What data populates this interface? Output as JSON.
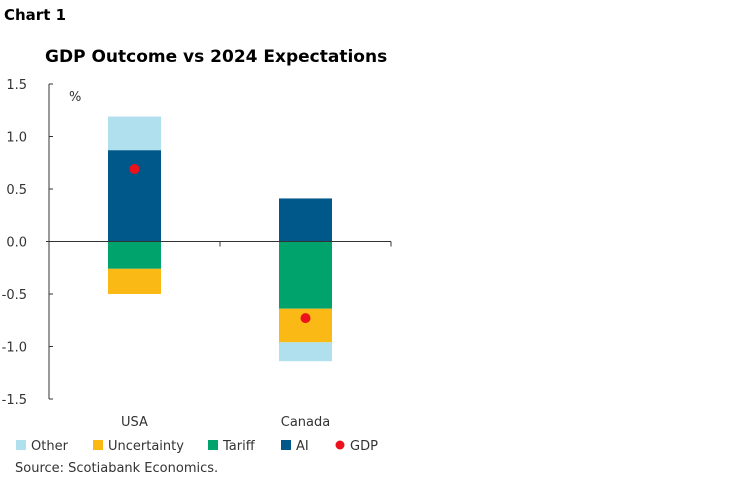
{
  "chart_label": "Chart 1",
  "source": "Source: Scotiabank Economics.",
  "chart_data": {
    "type": "bar",
    "stacked": true,
    "title": "GDP Outcome vs 2024 Expectations",
    "ylabel": "%",
    "categories": [
      "USA",
      "Canada"
    ],
    "ylim": [
      -1.5,
      1.5
    ],
    "yticks": [
      "1.5",
      "1.0",
      "0.5",
      "0.0",
      "-0.5",
      "-1.0",
      "-1.5"
    ],
    "grid": false,
    "legend_position": "bottom",
    "series": [
      {
        "name": "AI",
        "color": "#00578A",
        "values": [
          0.87,
          0.41
        ]
      },
      {
        "name": "Tariff",
        "color": "#00A36C",
        "values": [
          -0.26,
          -0.64
        ]
      },
      {
        "name": "Uncertainty",
        "color": "#FBB915",
        "values": [
          -0.24,
          -0.32
        ]
      },
      {
        "name": "Other",
        "color": "#B0E0EE",
        "values": [
          0.32,
          -0.18
        ]
      }
    ],
    "points": {
      "name": "GDP",
      "color": "#EC111A",
      "values": [
        0.69,
        -0.73
      ]
    },
    "legend_order": [
      "Other",
      "Uncertainty",
      "Tariff",
      "AI",
      "GDP"
    ]
  }
}
